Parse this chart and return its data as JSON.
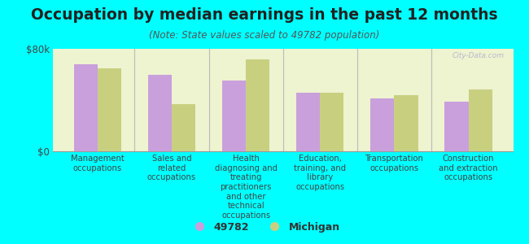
{
  "title": "Occupation by median earnings in the past 12 months",
  "subtitle": "(Note: State values scaled to 49782 population)",
  "background_color": "#00FFFF",
  "plot_bg_color": "#eef3d0",
  "categories": [
    "Management\noccupations",
    "Sales and\nrelated\noccupations",
    "Health\ndiagnosing and\ntreating\npractitioners\nand other\ntechnical\noccupations",
    "Education,\ntraining, and\nlibrary\noccupations",
    "Transportation\noccupations",
    "Construction\nand extraction\noccupations"
  ],
  "values_49782": [
    68000,
    60000,
    55000,
    46000,
    41000,
    39000
  ],
  "values_michigan": [
    65000,
    37000,
    72000,
    46000,
    44000,
    48000
  ],
  "color_49782": "#c9a0dc",
  "color_michigan": "#c8d080",
  "ylim": [
    0,
    80000
  ],
  "yticks": [
    0,
    80000
  ],
  "ytick_labels": [
    "$0",
    "$80k"
  ],
  "legend_labels": [
    "49782",
    "Michigan"
  ],
  "bar_width": 0.32,
  "title_fontsize": 13.5,
  "subtitle_fontsize": 8.5,
  "axis_label_fontsize": 7.2,
  "watermark": "City-Data.com"
}
